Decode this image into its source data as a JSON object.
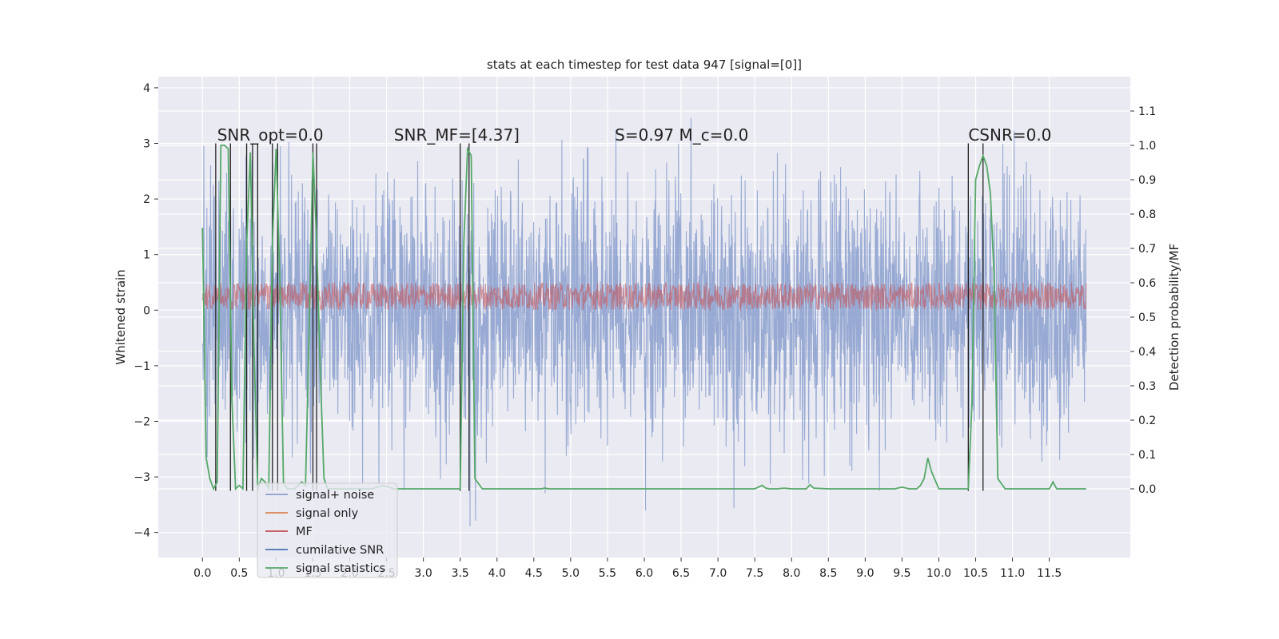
{
  "chart_data": {
    "type": "line",
    "title": "stats at each timestep for test data 947 [signal=[0]]",
    "ylabel": "Whitened strain",
    "ylabel_right": "Detection probability/MF",
    "xlim": [
      -0.6,
      12.6
    ],
    "ylim": [
      -4.45,
      4.2
    ],
    "ylim_right": [
      -0.2,
      1.2
    ],
    "x_ticks": [
      0.0,
      0.5,
      1.0,
      1.5,
      2.0,
      2.5,
      3.0,
      3.5,
      4.0,
      4.5,
      5.0,
      5.5,
      6.0,
      6.5,
      7.0,
      7.5,
      8.0,
      8.5,
      9.0,
      9.5,
      10.0,
      10.5,
      11.0,
      11.5
    ],
    "x_tick_labels": [
      "0.0",
      "0.5",
      "1.0",
      "1.5",
      "2.0",
      "2.5",
      "3.0",
      "3.5",
      "4.0",
      "4.5",
      "5.0",
      "5.5",
      "6.0",
      "6.5",
      "7.0",
      "7.5",
      "8.0",
      "8.5",
      "9.0",
      "9.5",
      "10.0",
      "10.5",
      "11.0",
      "11.5"
    ],
    "y_ticks": [
      -4,
      -3,
      -2,
      -1,
      0,
      1,
      2,
      3,
      4
    ],
    "y_tick_labels": [
      "−4",
      "−3",
      "−2",
      "−1",
      "0",
      "1",
      "2",
      "3",
      "4"
    ],
    "y_ticks_right": [
      0.0,
      0.1,
      0.2,
      0.3,
      0.4,
      0.5,
      0.6,
      0.7,
      0.8,
      0.9,
      1.0,
      1.1
    ],
    "y_tick_labels_right": [
      "0.0",
      "0.1",
      "0.2",
      "0.3",
      "0.4",
      "0.5",
      "0.6",
      "0.7",
      "0.8",
      "0.9",
      "1.0",
      "1.1"
    ],
    "grid": true,
    "legend_position": "lower-left",
    "annotations": [
      {
        "text": "SNR_opt=0.0",
        "x": 0.2,
        "y": 3.05
      },
      {
        "text": "SNR_MF=[4.37]",
        "x": 2.6,
        "y": 3.05
      },
      {
        "text": "S=0.97   M_c=0.0",
        "x": 5.6,
        "y": 3.05
      },
      {
        "text": "CSNR=0.0",
        "x": 10.4,
        "y": 3.05
      }
    ],
    "series": [
      {
        "name": "signal+ noise",
        "color": "#8a9fce",
        "style": "dense-noise",
        "x_range": [
          0.0,
          12.0
        ],
        "spread": 1.15,
        "y_max": 3.85,
        "y_min": -4.1
      },
      {
        "name": "signal only",
        "color": "#dd8452",
        "values": []
      },
      {
        "name": "MF",
        "color": "#c44e52",
        "style": "dense-noise",
        "x_range": [
          0.0,
          12.0
        ],
        "center": 0.25,
        "spread": 0.25
      },
      {
        "name": "cumilative SNR",
        "color": "#4c72b0",
        "values": []
      },
      {
        "name": "signal statistics",
        "color": "#55a868",
        "axis": "right",
        "x": [
          0.0,
          0.05,
          0.1,
          0.15,
          0.2,
          0.25,
          0.3,
          0.35,
          0.4,
          0.45,
          0.5,
          0.55,
          0.6,
          0.65,
          0.7,
          0.75,
          0.8,
          0.85,
          0.9,
          0.95,
          1.0,
          1.05,
          1.1,
          1.15,
          1.2,
          1.25,
          1.3,
          1.35,
          1.4,
          1.45,
          1.5,
          1.55,
          1.6,
          1.65,
          1.7,
          1.75,
          2.0,
          2.3,
          2.45,
          2.6,
          3.0,
          3.2,
          3.4,
          3.5,
          3.55,
          3.6,
          3.65,
          3.7,
          3.8,
          4.0,
          4.6,
          4.65,
          4.7,
          7.5,
          7.6,
          7.65,
          7.7,
          7.8,
          7.9,
          8.0,
          8.2,
          8.25,
          8.3,
          8.5,
          9.0,
          9.4,
          9.5,
          9.6,
          9.7,
          9.75,
          9.8,
          9.85,
          9.9,
          10.0,
          10.1,
          10.3,
          10.4,
          10.45,
          10.5,
          10.55,
          10.6,
          10.65,
          10.7,
          10.75,
          10.8,
          10.9,
          11.0,
          11.4,
          11.5,
          11.55,
          11.6,
          11.7,
          12.0
        ],
        "values": [
          0.76,
          0.09,
          0.03,
          0.0,
          0.02,
          1.0,
          1.0,
          0.99,
          0.26,
          0.0,
          0.01,
          0.0,
          0.71,
          0.98,
          0.41,
          0.0,
          0.03,
          0.02,
          0.0,
          0.72,
          0.99,
          0.61,
          0.02,
          0.0,
          0.0,
          0.0,
          0.01,
          0.02,
          0.01,
          0.47,
          0.98,
          0.72,
          0.34,
          0.03,
          0.0,
          0.0,
          0.0,
          0.0,
          0.01,
          0.0,
          0.0,
          0.0,
          0.0,
          0.0,
          0.72,
          0.99,
          0.97,
          0.03,
          0.0,
          0.0,
          0.0,
          0.002,
          0.0,
          0.0,
          0.01,
          0.002,
          0.0,
          0.0,
          0.002,
          0.0,
          0.0,
          0.012,
          0.002,
          0.0,
          0.0,
          0.0,
          0.005,
          0.0,
          0.0,
          0.01,
          0.03,
          0.09,
          0.05,
          0.0,
          0.0,
          0.0,
          0.0,
          0.25,
          0.9,
          0.94,
          0.97,
          0.94,
          0.86,
          0.62,
          0.03,
          0.0,
          0.0,
          0.0,
          0.0,
          0.02,
          0.0,
          0.0,
          0.0
        ]
      }
    ],
    "vertical_markers": {
      "color": "#222222",
      "x": [
        0.18,
        0.38,
        0.6,
        0.68,
        0.75,
        0.95,
        1.02,
        1.5,
        1.55,
        3.5,
        3.62,
        10.4,
        10.6
      ],
      "y_range": [
        -3.25,
        3.0
      ]
    }
  }
}
